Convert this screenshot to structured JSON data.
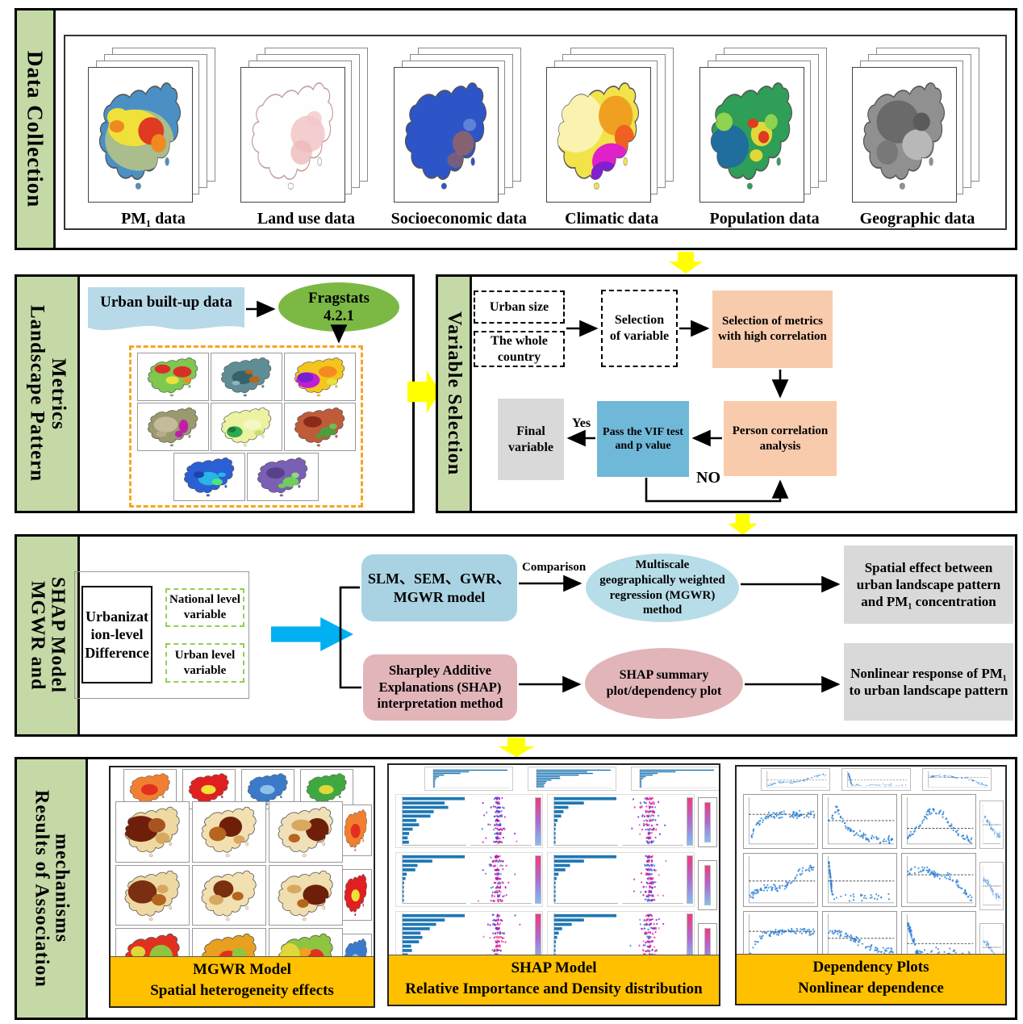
{
  "data_collection": {
    "label": "Data Collection",
    "datasets": [
      "PM₁ data",
      "Land use data",
      "Socioeconomic data",
      "Climatic data",
      "Population  data",
      "Geographic data"
    ]
  },
  "landscape_metrics": {
    "label": "Landscape Pattern\nMetrics",
    "input": "Urban built-up data",
    "tool_line1": "Fragstats",
    "tool_line2": "4.2.1"
  },
  "variable_selection": {
    "label": "Variable Selection",
    "urban_size": "Urban size",
    "whole_country": "The whole country",
    "selection_of_variable": "Selection of variable",
    "high_correlation": "Selection of metrics with high correlation",
    "person_correlation": "Person correlation analysis",
    "vif_test": "Pass the VIF test and p value",
    "final_variable": "Final variable",
    "yes": "Yes",
    "no": "NO"
  },
  "mgwr_shap": {
    "label": "MGWR and\nSHAP Model",
    "difference_box": "Urbanization-level Difference",
    "national_variable": "National level variable",
    "urban_variable": "Urban level variable",
    "models_box": "SLM、SEM、GWR、MGWR model",
    "shap_method_box": "Sharpley Additive Explanations (SHAP) interpretation method",
    "comparison": "Comparison",
    "mgwr_ellipse": "Multiscale geographically weighted regression (MGWR) method",
    "shap_ellipse": "SHAP summary plot/dependency plot",
    "spatial_effect": "Spatial effect between urban landscape pattern and PM₁ concentration",
    "nonlinear_response": "Nonlinear response of PM₁ to  urban landscape pattern"
  },
  "results": {
    "label": "Results of Association\nmechanisms",
    "panels": [
      {
        "title": "MGWR Model",
        "subtitle": "Spatial heterogeneity effects"
      },
      {
        "title": "SHAP Model",
        "subtitle": "Relative Importance and Density distribution"
      },
      {
        "title": "Dependency Plots",
        "subtitle": "Nonlinear dependence"
      }
    ]
  },
  "colors": {
    "section_label_green": "#c5d9a7",
    "yellow_arrow": "#ffff00",
    "cyan_arrow": "#00b0f0",
    "peach_box": "#f8cbad",
    "vif_blue_box": "#70b8d8",
    "model_blue_box": "#a9d3e3",
    "model_pink_box": "#e2b5b9",
    "gray_result_box": "#d9d9d9",
    "banner_orange": "#ffc000",
    "fragstats_green": "#7cb944",
    "dashed_orange": "#f5a623",
    "dashed_green": "#92d050",
    "input_light_blue": "#b8d9e8",
    "shap_bar_blue": "#1f77b4"
  }
}
